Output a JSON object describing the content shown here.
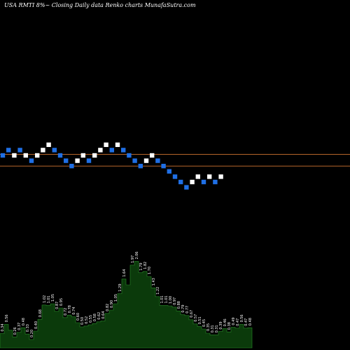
{
  "title": "USA RMTI 8%~  Closing Daily data  Renko  charts MunafaSutra.com",
  "colors": {
    "background": "#000000",
    "brick_up": "#ffffff",
    "brick_down": "#1f6fe5",
    "reference_line": "#b5652a",
    "volume_fill": "#0b3a0b",
    "volume_edge": "#2a8a2a",
    "volume_label": "#ffffff"
  },
  "chart_data": [
    {
      "type": "renko",
      "brick_levels": [
        0,
        1,
        0,
        1,
        0,
        -1,
        0,
        1,
        2,
        1,
        0,
        -1,
        -2,
        -1,
        0,
        -1,
        0,
        1,
        2,
        1,
        2,
        1,
        0,
        -1,
        -2,
        -1,
        0,
        -1,
        -2,
        -3,
        -4,
        -5,
        -6,
        -5,
        -4,
        -5,
        -4,
        -5,
        -4
      ],
      "brick_directions": [
        "down",
        "down",
        "up",
        "down",
        "up",
        "down",
        "up",
        "up",
        "up",
        "down",
        "down",
        "down",
        "down",
        "up",
        "up",
        "down",
        "up",
        "up",
        "up",
        "down",
        "up",
        "down",
        "down",
        "down",
        "down",
        "up",
        "up",
        "down",
        "down",
        "down",
        "down",
        "down",
        "down",
        "up",
        "up",
        "down",
        "up",
        "down",
        "up"
      ],
      "reference_levels": [
        0.2,
        -2.0
      ],
      "grid": false,
      "legend": "none"
    },
    {
      "type": "bar",
      "subtitle": "volume",
      "values": [
        0.34,
        0.56,
        0.42,
        0.26,
        0.37,
        0.48,
        0.33,
        0.2,
        0.4,
        0.68,
        1.02,
        1.01,
        1.05,
        0.87,
        0.95,
        0.72,
        0.78,
        0.74,
        0.6,
        0.5,
        0.52,
        0.55,
        0.58,
        0.62,
        0.64,
        0.82,
        0.9,
        1.05,
        1.29,
        1.64,
        1.5,
        1.97,
        2.06,
        1.79,
        1.82,
        1.7,
        1.43,
        1.22,
        1.01,
        1.01,
        1.0,
        0.97,
        0.88,
        0.79,
        0.77,
        0.67,
        0.57,
        0.51,
        0.45,
        0.35,
        0.31,
        0.31,
        0.39,
        0.46,
        0.38,
        0.49,
        0.47,
        0.56,
        0.47,
        0.48
      ],
      "labels": [
        "0.34",
        "0.56",
        "",
        "0.26",
        "0.37",
        "0.48",
        "0.33",
        "0.20",
        "0.40",
        "0.68",
        "1.02",
        "1.01",
        "1.05",
        "0.87",
        "0.95",
        "0.72",
        "0.78",
        "0.74",
        "0.60",
        "0.50",
        "0.52",
        "0.55",
        "0.58",
        "0.62",
        "0.64",
        "0.82",
        "0.90",
        "1.05",
        "1.29",
        "1.64",
        "",
        "1.97",
        "2.06",
        "1.79",
        "1.82",
        "1.70",
        "1.43",
        "1.22",
        "1.01",
        "1.01",
        "1.00",
        "0.97",
        "0.88",
        "0.79",
        "0.77",
        "0.67",
        "0.57",
        "0.51",
        "0.45",
        "0.35",
        "0.31",
        "0.31",
        "0.39",
        "0.46",
        "0.38",
        "0.49",
        "0.47",
        "0.56",
        "0.47",
        "0.48"
      ]
    }
  ]
}
